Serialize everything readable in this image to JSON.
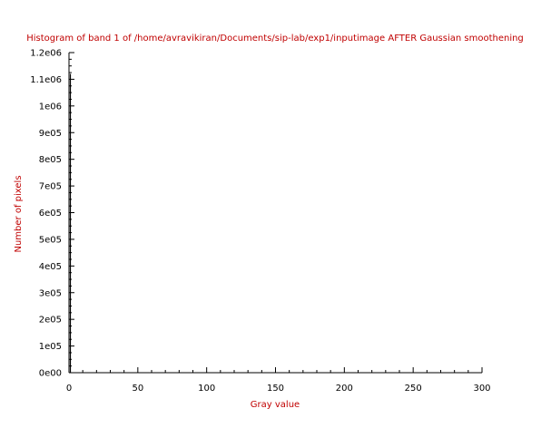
{
  "chart_data": {
    "type": "bar",
    "title": "Histogram of band 1 of /home/avravikiran/Documents/sip-lab/exp1/inputimage AFTER Gaussian smoothening",
    "xlabel": "Gray value",
    "ylabel": "Number of pixels",
    "xlim": [
      0,
      300
    ],
    "ylim": [
      0,
      1200000
    ],
    "x_ticks": [
      0,
      50,
      100,
      150,
      200,
      250,
      300
    ],
    "x_tick_labels": [
      "0",
      "50",
      "100",
      "150",
      "200",
      "250",
      "300"
    ],
    "y_ticks": [
      0,
      100000,
      200000,
      300000,
      400000,
      500000,
      600000,
      700000,
      800000,
      900000,
      1000000,
      1100000,
      1200000
    ],
    "y_tick_labels": [
      "0e00",
      "1e05",
      "2e05",
      "3e05",
      "4e05",
      "5e05",
      "6e05",
      "7e05",
      "8e05",
      "9e05",
      "1e06",
      "1.1e06",
      "1.2e06"
    ],
    "x": [
      1
    ],
    "values": [
      1120000
    ],
    "grid": false,
    "colors": {
      "title": "#c00000",
      "axis_labels": "#c00000",
      "axes": "#000000",
      "bars": "#000000"
    }
  }
}
